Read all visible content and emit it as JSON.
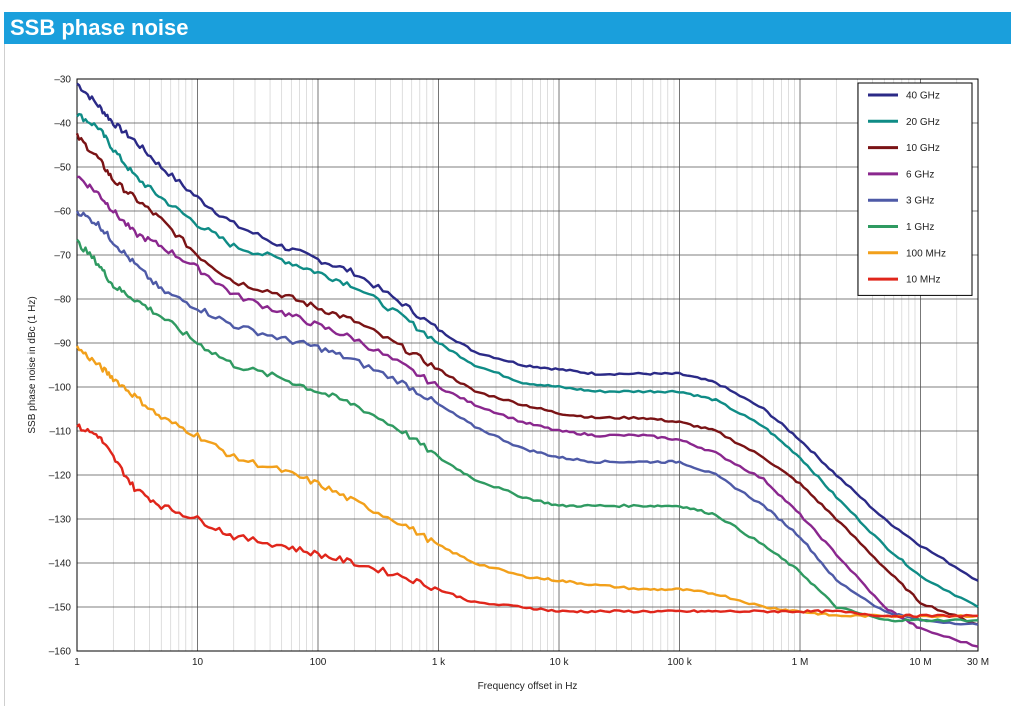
{
  "header": {
    "title": "SSB phase noise"
  },
  "chart_data": {
    "type": "line",
    "title": "SSB phase noise",
    "xlabel": "Frequency offset in Hz",
    "ylabel": "SSB phase noise in dBc (1 Hz)",
    "xscale": "log",
    "xlim": [
      1,
      30000000
    ],
    "ylim": [
      -160,
      -30
    ],
    "grid": true,
    "legend_position": "top-right",
    "x_ticks": [
      {
        "value": 1,
        "label": "1"
      },
      {
        "value": 10,
        "label": "10"
      },
      {
        "value": 100,
        "label": "100"
      },
      {
        "value": 1000,
        "label": "1 k"
      },
      {
        "value": 10000,
        "label": "10 k"
      },
      {
        "value": 100000,
        "label": "100 k"
      },
      {
        "value": 1000000,
        "label": "1 M"
      },
      {
        "value": 10000000,
        "label": "10 M"
      },
      {
        "value": 30000000,
        "label": "30 M"
      }
    ],
    "y_ticks": [
      {
        "value": -30,
        "label": "–30"
      },
      {
        "value": -40,
        "label": "–40"
      },
      {
        "value": -50,
        "label": "–50"
      },
      {
        "value": -60,
        "label": "–60"
      },
      {
        "value": -70,
        "label": "–70"
      },
      {
        "value": -80,
        "label": "–80"
      },
      {
        "value": -90,
        "label": "–90"
      },
      {
        "value": -100,
        "label": "–100"
      },
      {
        "value": -110,
        "label": "–110"
      },
      {
        "value": -120,
        "label": "–120"
      },
      {
        "value": -130,
        "label": "–130"
      },
      {
        "value": -140,
        "label": "–140"
      },
      {
        "value": -150,
        "label": "–150"
      },
      {
        "value": -160,
        "label": "–160"
      }
    ],
    "series": [
      {
        "name": "40 GHz",
        "color": "#2b2a87",
        "x": [
          1,
          1.5,
          2,
          3,
          5,
          10,
          20,
          50,
          100,
          200,
          500,
          1000,
          2000,
          5000,
          10000,
          20000,
          50000,
          100000,
          200000,
          500000,
          1000000,
          2000000,
          5000000,
          10000000,
          30000000
        ],
        "y": [
          -31,
          -36,
          -40,
          -44,
          -50,
          -57,
          -63,
          -68,
          -71,
          -74,
          -81,
          -87,
          -92,
          -95,
          -96,
          -97,
          -97,
          -97,
          -99,
          -105,
          -112,
          -120,
          -130,
          -136,
          -144
        ]
      },
      {
        "name": "20 GHz",
        "color": "#0f8c86",
        "x": [
          1,
          1.5,
          2,
          3,
          5,
          10,
          20,
          50,
          100,
          200,
          500,
          1000,
          2000,
          5000,
          10000,
          20000,
          50000,
          100000,
          200000,
          500000,
          1000000,
          2000000,
          5000000,
          10000000,
          30000000
        ],
        "y": [
          -38,
          -41,
          -46,
          -52,
          -57,
          -63,
          -68,
          -71,
          -74,
          -77,
          -84,
          -90,
          -95,
          -99,
          -100,
          -101,
          -101,
          -101,
          -103,
          -109,
          -116,
          -125,
          -136,
          -143,
          -150
        ]
      },
      {
        "name": "10 GHz",
        "color": "#7a1315",
        "x": [
          1,
          1.5,
          2,
          3,
          5,
          10,
          20,
          50,
          100,
          200,
          500,
          1000,
          2000,
          5000,
          10000,
          20000,
          50000,
          100000,
          200000,
          500000,
          1000000,
          2000000,
          5000000,
          10000000,
          30000000
        ],
        "y": [
          -43,
          -48,
          -53,
          -57,
          -62,
          -70,
          -76,
          -79,
          -82,
          -85,
          -91,
          -96,
          -101,
          -104,
          -106,
          -107,
          -107,
          -108,
          -110,
          -116,
          -122,
          -130,
          -141,
          -149,
          -154
        ]
      },
      {
        "name": "6 GHz",
        "color": "#8a278e",
        "x": [
          1,
          1.5,
          2,
          3,
          5,
          10,
          20,
          50,
          100,
          200,
          500,
          1000,
          2000,
          5000,
          10000,
          20000,
          50000,
          100000,
          200000,
          500000,
          1000000,
          2000000,
          5000000,
          10000000,
          30000000
        ],
        "y": [
          -52,
          -56,
          -60,
          -65,
          -68,
          -73,
          -79,
          -83,
          -86,
          -89,
          -95,
          -100,
          -104,
          -108,
          -110,
          -111,
          -111,
          -112,
          -115,
          -121,
          -129,
          -138,
          -150,
          -155,
          -159
        ]
      },
      {
        "name": "3 GHz",
        "color": "#4e5aa7",
        "x": [
          1,
          1.5,
          2,
          3,
          5,
          10,
          20,
          50,
          100,
          200,
          500,
          1000,
          2000,
          5000,
          10000,
          20000,
          50000,
          100000,
          200000,
          500000,
          1000000,
          2000000,
          5000000,
          10000000,
          30000000
        ],
        "y": [
          -60,
          -63,
          -67,
          -72,
          -78,
          -82,
          -86,
          -89,
          -91,
          -94,
          -99,
          -104,
          -109,
          -114,
          -116,
          -117,
          -117,
          -117,
          -120,
          -127,
          -134,
          -144,
          -151,
          -153,
          -154
        ]
      },
      {
        "name": "1 GHz",
        "color": "#2f9a61",
        "x": [
          1,
          1.5,
          2,
          3,
          5,
          10,
          20,
          50,
          100,
          200,
          500,
          1000,
          2000,
          5000,
          10000,
          20000,
          50000,
          100000,
          200000,
          500000,
          1000000,
          2000000,
          5000000,
          10000000,
          30000000
        ],
        "y": [
          -67,
          -72,
          -77,
          -80,
          -84,
          -90,
          -95,
          -98,
          -101,
          -104,
          -110,
          -116,
          -121,
          -125,
          -127,
          -127,
          -127,
          -127,
          -129,
          -136,
          -142,
          -150,
          -153,
          -153,
          -153
        ]
      },
      {
        "name": "100 MHz",
        "color": "#f2a01b",
        "x": [
          1,
          1.5,
          2,
          3,
          5,
          10,
          20,
          50,
          100,
          200,
          500,
          1000,
          2000,
          5000,
          10000,
          20000,
          50000,
          100000,
          200000,
          500000,
          1000000,
          2000000,
          5000000,
          10000000,
          30000000
        ],
        "y": [
          -91,
          -95,
          -98,
          -102,
          -107,
          -111,
          -116,
          -119,
          -122,
          -126,
          -131,
          -136,
          -140,
          -143,
          -144,
          -145,
          -146,
          -146,
          -147,
          -150,
          -151,
          -152,
          -152,
          -152,
          -152
        ]
      },
      {
        "name": "10 MHz",
        "color": "#e0261b",
        "x": [
          1,
          1.5,
          2,
          3,
          5,
          10,
          20,
          50,
          100,
          200,
          500,
          1000,
          2000,
          5000,
          10000,
          20000,
          50000,
          100000,
          200000,
          500000,
          1000000,
          2000000,
          5000000,
          10000000,
          30000000
        ],
        "y": [
          -109,
          -111,
          -116,
          -123,
          -127,
          -130,
          -134,
          -136,
          -138,
          -140,
          -143,
          -146,
          -149,
          -150,
          -151,
          -151,
          -151,
          -151,
          -151,
          -151,
          -151,
          -151,
          -152,
          -152,
          -152
        ]
      }
    ]
  }
}
